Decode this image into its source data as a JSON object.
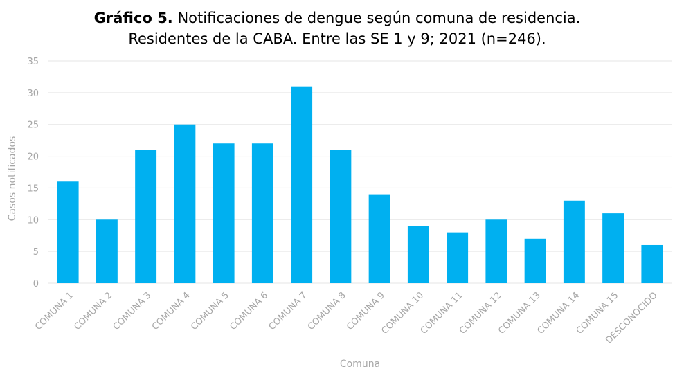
{
  "chart_data": {
    "type": "bar",
    "title_prefix": "Gráfico 5.",
    "title": [
      "Notificaciones de dengue según comuna de residencia.",
      "Residentes de la CABA. Entre las SE 1 y 9; 2021 (n=246)."
    ],
    "x_label": "Comuna",
    "y_label": "Casos notificados",
    "categories": [
      "COMUNA 1",
      "COMUNA 2",
      "COMUNA 3",
      "COMUNA 4",
      "COMUNA 5",
      "COMUNA 6",
      "COMUNA 7",
      "COMUNA 8",
      "COMUNA 9",
      "COMUNA 10",
      "COMUNA 11",
      "COMUNA 12",
      "COMUNA 13",
      "COMUNA 14",
      "COMUNA 15",
      "DESCONOCIDO"
    ],
    "values": [
      16,
      10,
      21,
      25,
      22,
      22,
      31,
      21,
      14,
      9,
      8,
      10,
      7,
      13,
      11,
      6
    ],
    "color": "#00b0f0",
    "ylim": [
      0,
      35
    ],
    "yticks": [
      0,
      5,
      10,
      15,
      20,
      25,
      30,
      35
    ],
    "grid": true
  }
}
